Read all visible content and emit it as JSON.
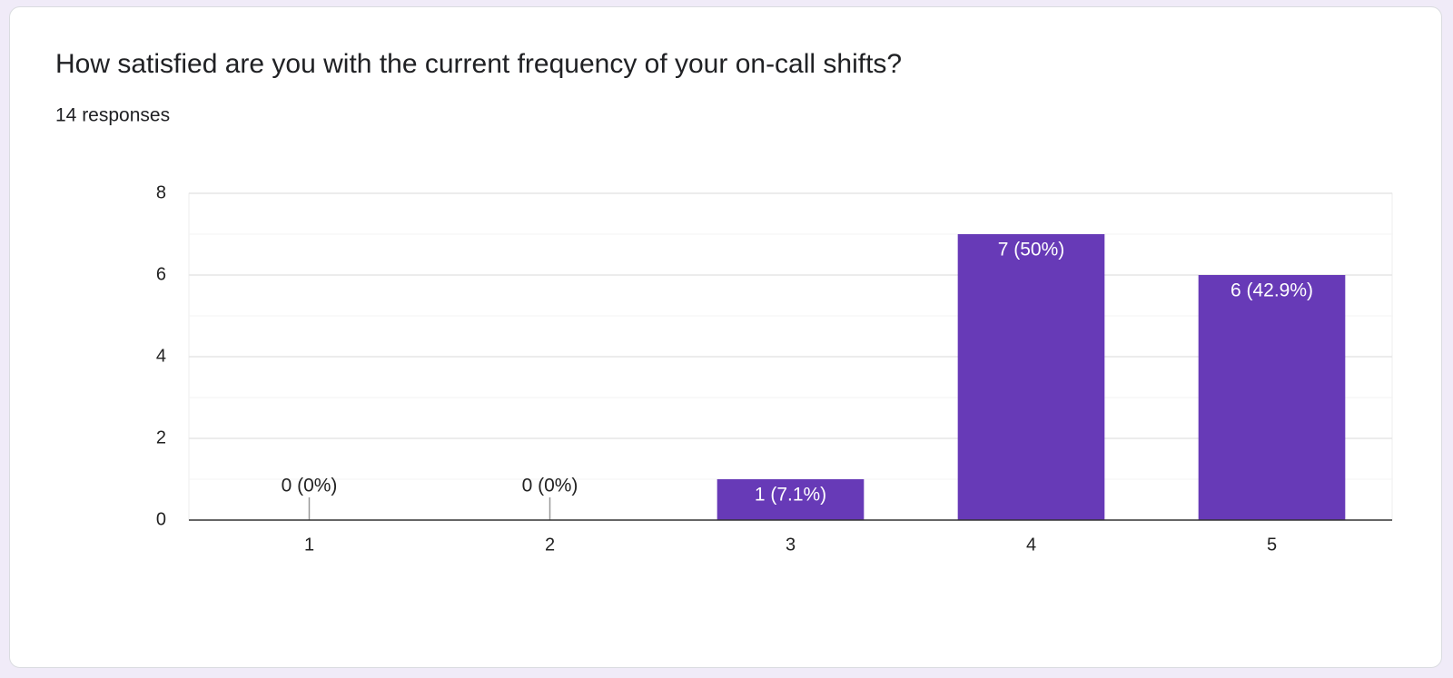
{
  "chart_data": {
    "type": "bar",
    "title": "How satisfied are you with the current frequency of your on-call shifts?",
    "subtitle": "14 responses",
    "categories": [
      "1",
      "2",
      "3",
      "4",
      "5"
    ],
    "values": [
      0,
      0,
      1,
      7,
      6
    ],
    "value_labels": [
      "0 (0%)",
      "0 (0%)",
      "1 (7.1%)",
      "7 (50%)",
      "6 (42.9%)"
    ],
    "color": "#673ab7",
    "ylim": [
      0,
      8
    ],
    "yticks": [
      0,
      2,
      4,
      6,
      8
    ],
    "minor_yticks": [
      1,
      3,
      5,
      7
    ],
    "grid": true
  }
}
